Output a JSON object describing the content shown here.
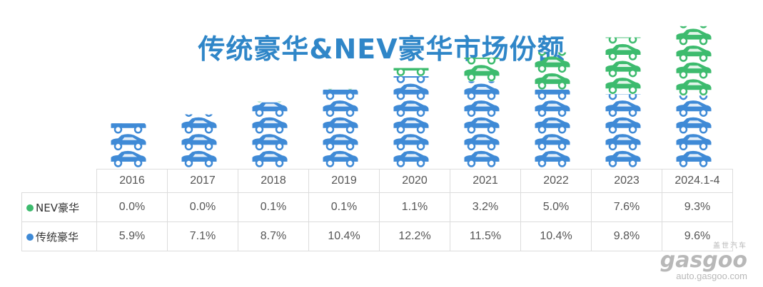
{
  "title": "传统豪华&NEV豪华市场份额",
  "chart_data": {
    "type": "bar",
    "subtype": "stacked-pictogram",
    "title": "传统豪华&NEV豪华市场份额",
    "categories": [
      "2016",
      "2017",
      "2018",
      "2019",
      "2020",
      "2021",
      "2022",
      "2023",
      "2024.1-4"
    ],
    "series": [
      {
        "name": "NEV豪华",
        "color": "#3dbb6e",
        "values": [
          0.0,
          0.0,
          0.1,
          0.1,
          1.1,
          3.2,
          5.0,
          7.6,
          9.3
        ],
        "labels": [
          "0.0%",
          "0.0%",
          "0.1%",
          "0.1%",
          "1.1%",
          "3.2%",
          "5.0%",
          "7.6%",
          "9.3%"
        ]
      },
      {
        "name": "传统豪华",
        "color": "#3f8ad6",
        "values": [
          5.9,
          7.1,
          8.7,
          10.4,
          12.2,
          11.5,
          10.4,
          9.8,
          9.6
        ],
        "labels": [
          "5.9%",
          "7.1%",
          "8.7%",
          "10.4%",
          "12.2%",
          "11.5%",
          "10.4%",
          "9.8%",
          "9.6%"
        ]
      }
    ],
    "unit": "%",
    "ylim": [
      0,
      19
    ],
    "legend": "left-of-table",
    "grid": false
  },
  "watermark": {
    "brand": "gasgoo",
    "cn": "盖世汽车",
    "url": "auto.gasgoo.com"
  }
}
